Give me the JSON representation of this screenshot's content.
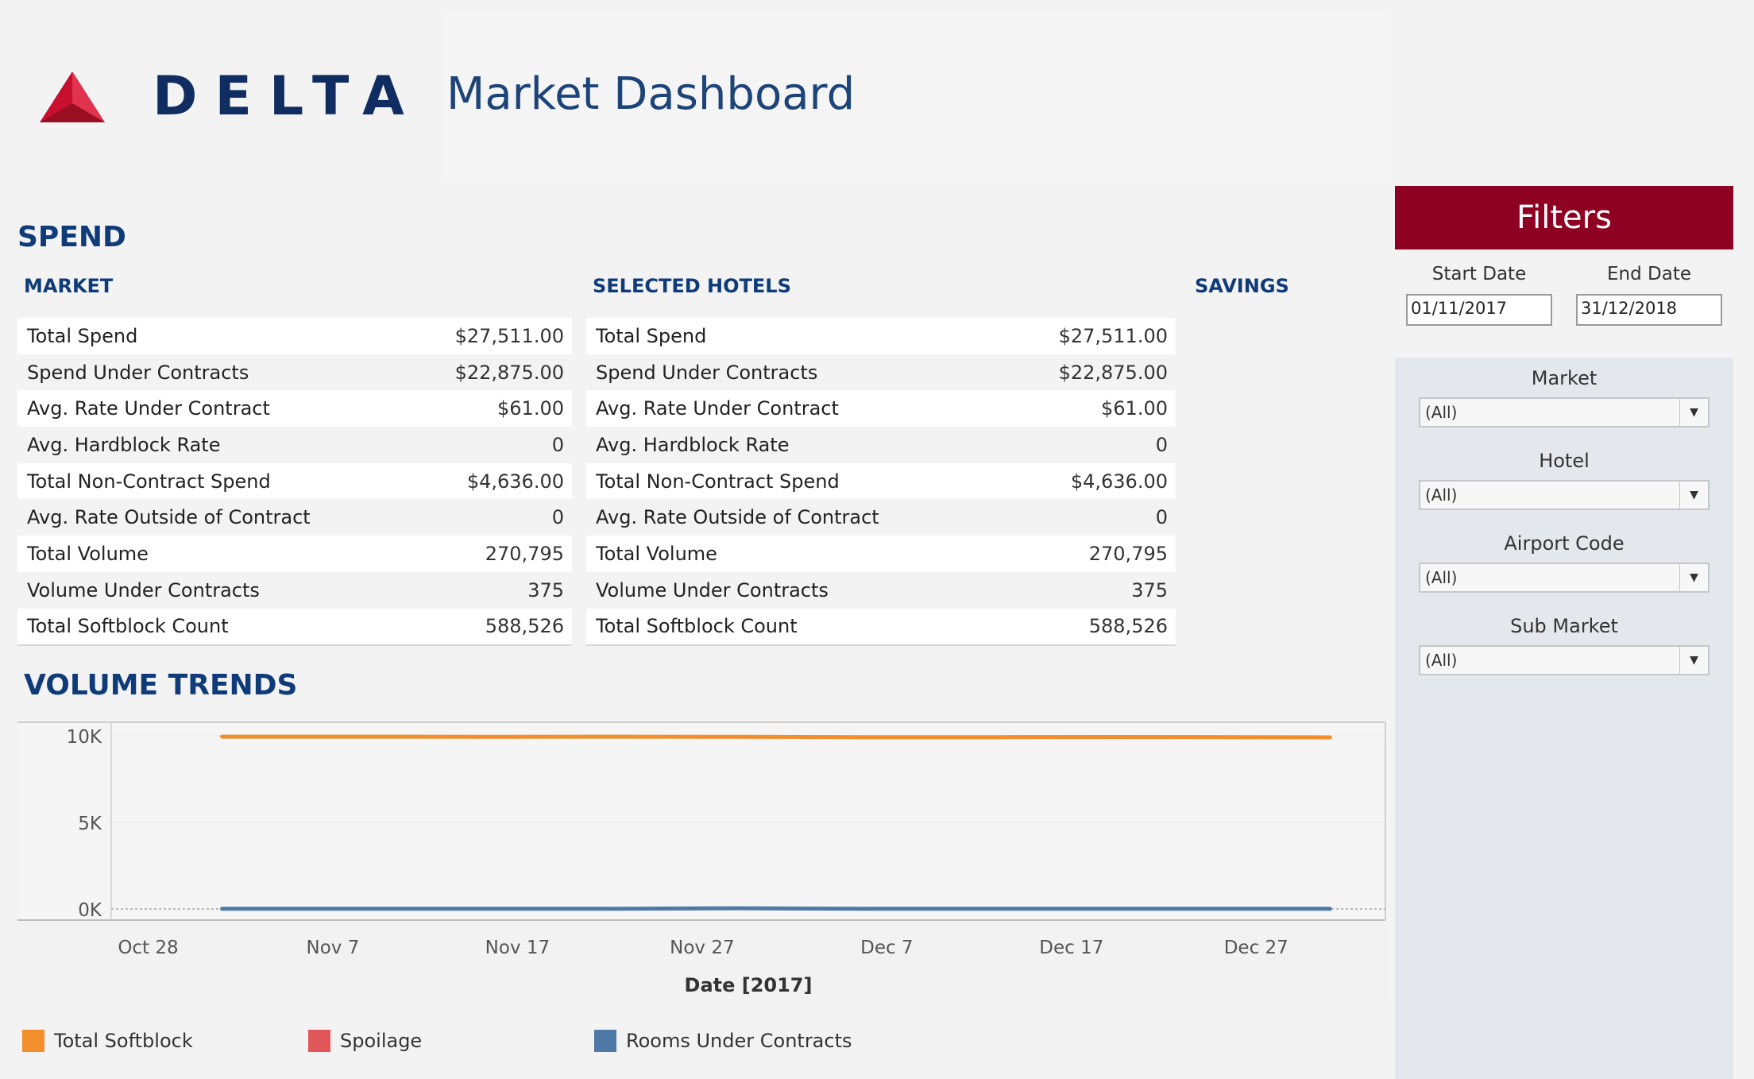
{
  "header": {
    "logo_text": "DELTA",
    "page_title": "Market Dashboard"
  },
  "spend": {
    "title": "SPEND",
    "market_heading": "MARKET",
    "selected_heading": "SELECTED HOTELS",
    "savings_heading": "SAVINGS",
    "market_rows": [
      {
        "label": "Total Spend",
        "value": "$27,511.00"
      },
      {
        "label": "Spend Under Contracts",
        "value": "$22,875.00"
      },
      {
        "label": "Avg. Rate Under Contract",
        "value": "$61.00"
      },
      {
        "label": "Avg. Hardblock Rate",
        "value": "0"
      },
      {
        "label": "Total Non-Contract Spend",
        "value": "$4,636.00"
      },
      {
        "label": "Avg. Rate Outside of Contract",
        "value": "0"
      },
      {
        "label": "Total Volume",
        "value": "270,795"
      },
      {
        "label": "Volume Under Contracts",
        "value": "375"
      },
      {
        "label": "Total Softblock Count",
        "value": "588,526"
      }
    ],
    "selected_rows": [
      {
        "label": "Total Spend",
        "value": "$27,511.00"
      },
      {
        "label": "Spend Under Contracts",
        "value": "$22,875.00"
      },
      {
        "label": "Avg. Rate Under Contract",
        "value": "$61.00"
      },
      {
        "label": "Avg. Hardblock Rate",
        "value": "0"
      },
      {
        "label": "Total Non-Contract Spend",
        "value": "$4,636.00"
      },
      {
        "label": "Avg. Rate Outside of Contract",
        "value": "0"
      },
      {
        "label": "Total Volume",
        "value": "270,795"
      },
      {
        "label": "Volume Under Contracts",
        "value": "375"
      },
      {
        "label": "Total Softblock Count",
        "value": "588,526"
      }
    ]
  },
  "volume_trends": {
    "title": "VOLUME TRENDS"
  },
  "chart_data": {
    "type": "line",
    "xlabel": "Date [2017]",
    "ylabel": "",
    "x_tick_labels": [
      "Oct 28",
      "Nov 7",
      "Nov 17",
      "Nov 27",
      "Dec 7",
      "Dec 17",
      "Dec 27"
    ],
    "y_tick_labels": [
      "10K",
      "5K",
      "0K"
    ],
    "ylim": [
      0,
      10000
    ],
    "x_range": [
      "2017-10-26",
      "2018-01-03"
    ],
    "grid": true,
    "series": [
      {
        "name": "Total Softblock",
        "color": "#f28e2b",
        "x": [
          "2017-11-01",
          "2017-11-08",
          "2017-11-15",
          "2017-11-22",
          "2017-11-29",
          "2017-12-06",
          "2017-12-13",
          "2017-12-20",
          "2017-12-27",
          "2017-12-31"
        ],
        "values": [
          9950,
          9950,
          9940,
          9950,
          9940,
          9920,
          9920,
          9930,
          9920,
          9910
        ]
      },
      {
        "name": "Spoilage",
        "color": "#e15759",
        "x": [],
        "values": []
      },
      {
        "name": "Rooms Under Contracts",
        "color": "#4e79a7",
        "x": [
          "2017-11-01",
          "2017-11-08",
          "2017-11-15",
          "2017-11-22",
          "2017-11-29",
          "2017-12-06",
          "2017-12-13",
          "2017-12-20",
          "2017-12-27",
          "2017-12-31"
        ],
        "values": [
          10,
          12,
          10,
          15,
          40,
          10,
          8,
          10,
          10,
          10
        ]
      }
    ]
  },
  "legend": {
    "items": [
      {
        "label": "Total Softblock",
        "color": "#f28e2b"
      },
      {
        "label": "Spoilage",
        "color": "#e15759"
      },
      {
        "label": "Rooms Under Contracts",
        "color": "#4e79a7"
      }
    ]
  },
  "filters": {
    "title": "Filters",
    "start_date_label": "Start Date",
    "end_date_label": "End Date",
    "start_date": "01/11/2017",
    "end_date": "31/12/2018",
    "selects": [
      {
        "label": "Market",
        "value": "(All)"
      },
      {
        "label": "Hotel",
        "value": "(All)"
      },
      {
        "label": "Airport Code",
        "value": "(All)"
      },
      {
        "label": "Sub Market",
        "value": "(All)"
      }
    ]
  },
  "colors": {
    "brand_navy": "#0f2d61",
    "brand_red": "#c8102e",
    "filters_header": "#8f0122"
  }
}
